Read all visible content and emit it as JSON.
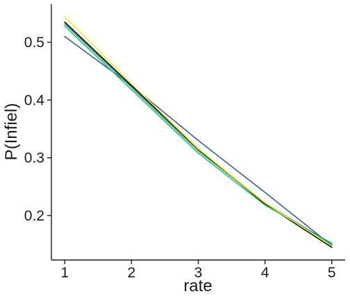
{
  "chart_data": {
    "type": "line",
    "xlabel": "rate",
    "ylabel": "P(Infiel)",
    "x": [
      1,
      2,
      3,
      4,
      5
    ],
    "xticks": [
      "1",
      "2",
      "3",
      "4",
      "5"
    ],
    "yticks": [
      "0.2",
      "0.3",
      "0.4",
      "0.5"
    ],
    "xlim": [
      0.8,
      5.2
    ],
    "ylim": [
      0.123,
      0.566
    ],
    "grid": false,
    "series": [
      {
        "color": "#3a5e8c",
        "values": [
          0.51,
          0.425,
          0.33,
          0.24,
          0.148
        ]
      },
      {
        "color": "#000000",
        "values": [
          0.535,
          0.425,
          0.315,
          0.22,
          0.145
        ]
      },
      {
        "color": "#35b779",
        "values": [
          0.528,
          0.418,
          0.308,
          0.218,
          0.152
        ]
      },
      {
        "color": "#1f9e89",
        "values": [
          0.532,
          0.422,
          0.312,
          0.222,
          0.15
        ]
      },
      {
        "color": "#fde725",
        "values": [
          0.545,
          0.428,
          0.316,
          0.222,
          0.147
        ]
      }
    ]
  }
}
